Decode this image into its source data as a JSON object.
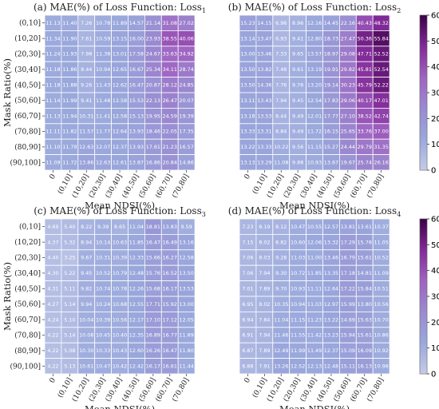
{
  "chart_data": [
    {
      "type": "heatmap",
      "title": "(a) MAE(%) of Loss Function: Loss",
      "title_sub": "1",
      "xlabel": "Mean NDSI(%)",
      "ylabel": "Mask Ratio(%)",
      "x_categories": [
        "0",
        "(0,10]",
        "(10,20]",
        "(20,30]",
        "(30,40]",
        "(40,50]",
        "(50,60]",
        "(60,70]",
        "(70,80]"
      ],
      "y_categories": [
        "(0,10]",
        "(10,20]",
        "(20,30]",
        "(30,40]",
        "(40,50]",
        "(50,60]",
        "(60,70]",
        "(70,80]",
        "(80,90]",
        "(90,100]"
      ],
      "values": [
        [
          "11.13",
          "11.40",
          "7.26",
          "10.78",
          "11.89",
          "14.57",
          "21.14",
          "31.08",
          "27.02"
        ],
        [
          "11.34",
          "11.90",
          "7.61",
          "10.59",
          "13.15",
          "16.00",
          "23.93",
          "38.55",
          "40.06"
        ],
        [
          "11.24",
          "11.93",
          "7.98",
          "11.38",
          "13.01",
          "17.58",
          "24.67",
          "33.63",
          "34.92"
        ],
        [
          "11.18",
          "11.86",
          "8.44",
          "10.94",
          "12.65",
          "16.67",
          "25.34",
          "34.11",
          "28.74"
        ],
        [
          "11.18",
          "11.88",
          "9.26",
          "11.43",
          "12.62",
          "16.47",
          "20.87",
          "28.12",
          "24.85"
        ],
        [
          "11.14",
          "11.99",
          "9.41",
          "11.48",
          "12.58",
          "15.53",
          "22.13",
          "26.47",
          "20.07"
        ],
        [
          "11.13",
          "11.94",
          "10.31",
          "11.41",
          "12.58",
          "15.13",
          "19.95",
          "24.59",
          "19.39"
        ],
        [
          "11.11",
          "11.82",
          "11.57",
          "11.77",
          "12.64",
          "13.93",
          "18.46",
          "22.05",
          "17.35"
        ],
        [
          "11.10",
          "11.79",
          "12.63",
          "12.07",
          "12.37",
          "13.93",
          "17.61",
          "21.23",
          "16.57"
        ],
        [
          "11.09",
          "11.72",
          "13.86",
          "12.63",
          "12.61",
          "13.87",
          "16.86",
          "20.84",
          "14.86"
        ]
      ],
      "vmin": 0,
      "vmax": 60
    },
    {
      "type": "heatmap",
      "title": "(b) MAE(%) of Loss Function: Loss",
      "title_sub": "2",
      "xlabel": "Mean NDSI(%)",
      "ylabel": "",
      "x_categories": [
        "0",
        "(0,10]",
        "(10,20]",
        "(20,30]",
        "(30,40]",
        "(40,50]",
        "(50,60]",
        "(60,70]",
        "(70,80]"
      ],
      "y_categories": [],
      "values": [
        [
          "15.23",
          "14.15",
          "6.96",
          "8.96",
          "12.16",
          "14.45",
          "22.16",
          "40.43",
          "48.32"
        ],
        [
          "13.14",
          "13.47",
          "6.93",
          "9.41",
          "12.80",
          "18.73",
          "27.47",
          "50.36",
          "55.84"
        ],
        [
          "13.00",
          "13.46",
          "7.33",
          "9.65",
          "13.57",
          "18.97",
          "29.08",
          "47.71",
          "52.52"
        ],
        [
          "13.50",
          "13.82",
          "7.48",
          "9.61",
          "13.19",
          "19.91",
          "29.82",
          "45.81",
          "52.54"
        ],
        [
          "13.50",
          "14.36",
          "7.76",
          "9.76",
          "13.20",
          "19.14",
          "30.23",
          "45.79",
          "52.22"
        ],
        [
          "13.11",
          "13.43",
          "7.94",
          "9.45",
          "12.54",
          "17.83",
          "29.06",
          "40.17",
          "47.01"
        ],
        [
          "13.18",
          "13.53",
          "8.44",
          "9.49",
          "12.01",
          "17.77",
          "27.10",
          "38.52",
          "42.74"
        ],
        [
          "13.33",
          "13.31",
          "8.84",
          "9.49",
          "11.72",
          "16.15",
          "25.65",
          "33.76",
          "37.00"
        ],
        [
          "13.22",
          "13.33",
          "10.22",
          "9.56",
          "11.15",
          "15.27",
          "24.44",
          "29.79",
          "31.35"
        ],
        [
          "13.13",
          "13.29",
          "11.08",
          "9.88",
          "10.93",
          "13.67",
          "19.67",
          "25.74",
          "26.16"
        ]
      ],
      "vmin": 0,
      "vmax": 60
    },
    {
      "type": "heatmap",
      "title": "(c) MAE(%) of Loss Function: Loss",
      "title_sub": "3",
      "xlabel": "Mean NDSI(%)",
      "ylabel": "Mask Ratio(%)",
      "x_categories": [
        "0",
        "(0,10]",
        "(10,20]",
        "(20,30]",
        "(30,40]",
        "(40,50]",
        "(50,60]",
        "(60,70]",
        "(70,80]"
      ],
      "y_categories": [
        "(0,10]",
        "(10,20]",
        "(20,30]",
        "(30,40]",
        "(40,50]",
        "(50,60]",
        "(60,70]",
        "(70,80]",
        "(80,90]",
        "(90,100]"
      ],
      "values": [
        [
          "4.69",
          "5.40",
          "8.22",
          "9.39",
          "8.65",
          "11.04",
          "18.81",
          "13.83",
          "9.59"
        ],
        [
          "4.37",
          "5.32",
          "8.94",
          "10.14",
          "10.63",
          "11.85",
          "16.47",
          "16.49",
          "13.16"
        ],
        [
          "4.40",
          "3.25",
          "9.67",
          "10.31",
          "10.39",
          "12.33",
          "15.66",
          "16.27",
          "12.58"
        ],
        [
          "4.30",
          "5.22",
          "9.45",
          "10.52",
          "10.79",
          "12.48",
          "15.76",
          "16.52",
          "13.50"
        ],
        [
          "4.31",
          "5.11",
          "9.82",
          "10.74",
          "10.78",
          "12.26",
          "15.68",
          "16.17",
          "13.53"
        ],
        [
          "4.27",
          "5.14",
          "9.94",
          "10.24",
          "10.68",
          "12.55",
          "17.71",
          "15.92",
          "13.00"
        ],
        [
          "4.24",
          "5.10",
          "10.04",
          "10.39",
          "10.56",
          "12.17",
          "17.10",
          "17.12",
          "12.05"
        ],
        [
          "4.22",
          "5.14",
          "10.08",
          "10.45",
          "10.40",
          "12.35",
          "16.89",
          "16.77",
          "11.89"
        ],
        [
          "4.22",
          "5.08",
          "10.30",
          "10.33",
          "10.43",
          "12.60",
          "16.26",
          "16.47",
          "11.80"
        ],
        [
          "4.22",
          "5.13",
          "10.61",
          "10.47",
          "10.42",
          "12.42",
          "16.17",
          "16.61",
          "11.44"
        ]
      ],
      "vmin": 0,
      "vmax": 60
    },
    {
      "type": "heatmap",
      "title": "(d) MAE(%) of Loss Function: Loss",
      "title_sub": "4",
      "xlabel": "Mean NDSI(%)",
      "ylabel": "",
      "x_categories": [
        "0",
        "(0,10]",
        "(10,20]",
        "(20,30]",
        "(30,40]",
        "(40,50]",
        "(50,60]",
        "(60,70]",
        "(70,80]"
      ],
      "y_categories": [],
      "values": [
        [
          "7.23",
          "8.19",
          "8.12",
          "10.47",
          "10.55",
          "12.57",
          "13.81",
          "13.61",
          "10.37"
        ],
        [
          "7.15",
          "8.02",
          "8.82",
          "10.60",
          "12.06",
          "13.32",
          "17.29",
          "15.78",
          "11.05"
        ],
        [
          "7.06",
          "8.03",
          "9.28",
          "11.03",
          "11.00",
          "13.46",
          "16.79",
          "15.61",
          "10.52"
        ],
        [
          "7.06",
          "7.94",
          "9.30",
          "10.72",
          "11.85",
          "13.35",
          "17.18",
          "14.81",
          "11.09"
        ],
        [
          "7.01",
          "7.89",
          "9.70",
          "10.93",
          "11.11",
          "12.64",
          "17.22",
          "15.84",
          "10.51"
        ],
        [
          "6.95",
          "8.02",
          "10.35",
          "10.94",
          "11.03",
          "12.97",
          "15.99",
          "13.80",
          "10.56"
        ],
        [
          "6.94",
          "7.84",
          "11.04",
          "11.15",
          "11.23",
          "13.22",
          "14.69",
          "15.63",
          "10.70"
        ],
        [
          "6.91",
          "7.94",
          "11.46",
          "11.55",
          "11.42",
          "13.23",
          "15.94",
          "15.61",
          "10.86"
        ],
        [
          "6.87",
          "7.89",
          "12.49",
          "11.99",
          "11.49",
          "12.37",
          "15.09",
          "16.09",
          "10.92"
        ],
        [
          "6.88",
          "7.91",
          "13.26",
          "12.52",
          "12.13",
          "12.48",
          "15.11",
          "16.13",
          "10.98"
        ]
      ],
      "vmin": 0,
      "vmax": 60
    }
  ],
  "colorbar": {
    "ticks": [
      "0",
      "10",
      "20",
      "30",
      "40",
      "50",
      "60"
    ],
    "colors": [
      "#b9c6e6",
      "#3d0046"
    ]
  }
}
